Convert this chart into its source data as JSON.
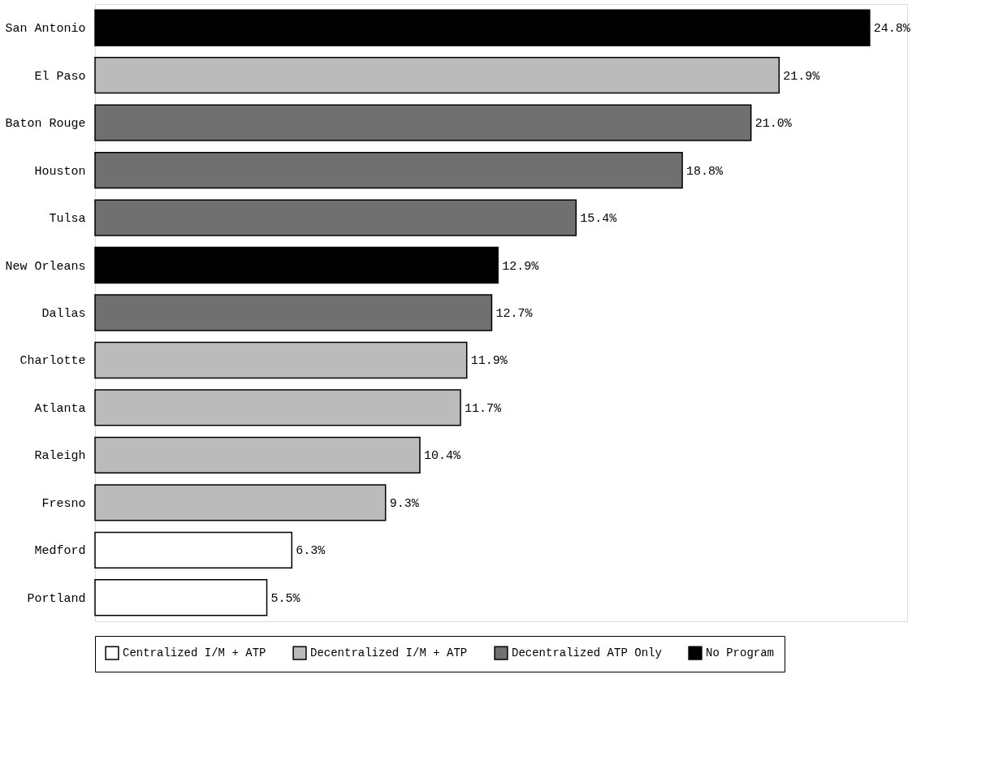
{
  "chart_data": {
    "type": "bar",
    "orientation": "horizontal",
    "legend": "bottom",
    "categories": [
      "San Antonio",
      "El Paso",
      "Baton Rouge",
      "Houston",
      "Tulsa",
      "New Orleans",
      "Dallas",
      "Charlotte",
      "Atlanta",
      "Raleigh",
      "Fresno",
      "Medford",
      "Portland"
    ],
    "series": [
      {
        "name": "Centralized I/M + ATP",
        "color": "#ffffff",
        "values": [
          null,
          null,
          null,
          null,
          null,
          null,
          null,
          null,
          null,
          null,
          null,
          6.3,
          5.5
        ],
        "value_labels": [
          null,
          null,
          null,
          null,
          null,
          null,
          null,
          null,
          null,
          null,
          null,
          "6.3%",
          "5.5%"
        ]
      },
      {
        "name": "Decentralized I/M + ATP",
        "color": "#bbbbbb",
        "values": [
          null,
          21.9,
          null,
          null,
          null,
          null,
          null,
          11.9,
          11.7,
          10.4,
          9.3,
          null,
          null
        ],
        "value_labels": [
          null,
          "21.9%",
          null,
          null,
          null,
          null,
          null,
          "11.9%",
          "11.7%",
          "10.4%",
          "9.3%",
          null,
          null
        ]
      },
      {
        "name": "Decentralized ATP Only",
        "color": "#707070",
        "values": [
          null,
          null,
          21.0,
          18.8,
          15.4,
          null,
          12.7,
          null,
          null,
          null,
          null,
          null,
          null
        ],
        "value_labels": [
          null,
          null,
          "21.0%",
          "18.8%",
          "15.4%",
          null,
          "12.7%",
          null,
          null,
          null,
          null,
          null,
          null
        ]
      },
      {
        "name": "No Program",
        "color": "#000000",
        "values": [
          24.8,
          null,
          null,
          null,
          null,
          12.9,
          null,
          null,
          null,
          null,
          null,
          null,
          null
        ],
        "value_labels": [
          "24.8%",
          null,
          null,
          null,
          null,
          "12.9%",
          null,
          null,
          null,
          null,
          null,
          null,
          null
        ]
      }
    ]
  }
}
